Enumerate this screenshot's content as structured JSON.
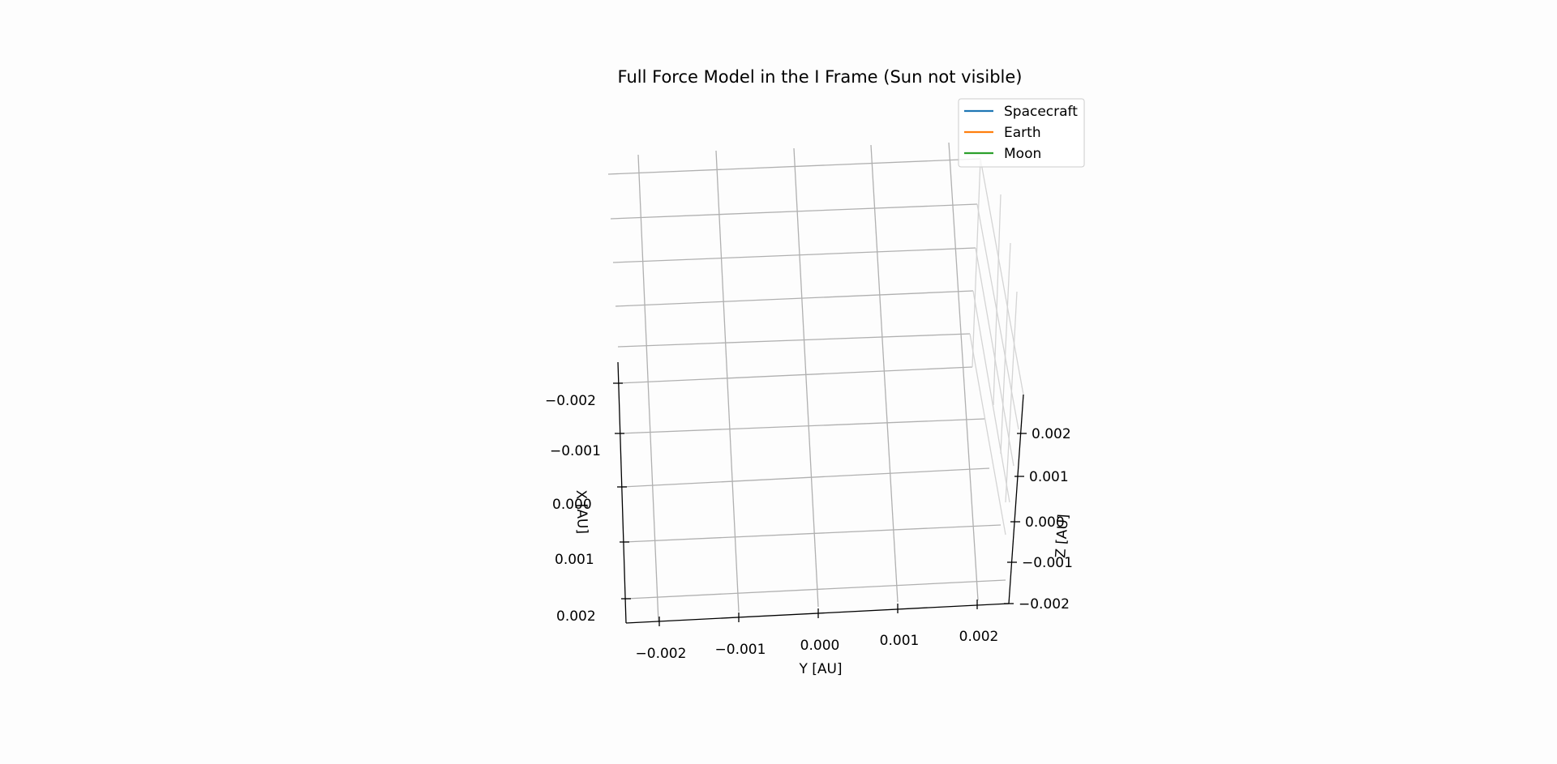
{
  "chart_data": {
    "type": "line",
    "projection": "3d",
    "title": "Full Force Model in the I Frame (Sun not visible)",
    "xlabel": "X [AU]",
    "ylabel": "Y [AU]",
    "zlabel": "Z [AU]",
    "x_ticks": [
      "−0.002",
      "−0.001",
      "0.000",
      "0.001",
      "0.002"
    ],
    "y_ticks": [
      "−0.002",
      "−0.001",
      "0.000",
      "0.001",
      "0.002"
    ],
    "z_ticks": [
      "−0.002",
      "−0.001",
      "0.000",
      "0.001",
      "0.002"
    ],
    "xlim": [
      -0.0025,
      0.0025
    ],
    "ylim": [
      -0.0025,
      0.0025
    ],
    "zlim": [
      -0.0025,
      0.0025
    ],
    "grid": true,
    "legend_position": "top-right",
    "series": [
      {
        "name": "Spacecraft",
        "color": "#1f77b4",
        "points": []
      },
      {
        "name": "Earth",
        "color": "#ff7f0e",
        "points": []
      },
      {
        "name": "Moon",
        "color": "#2ca02c",
        "points": []
      }
    ]
  }
}
